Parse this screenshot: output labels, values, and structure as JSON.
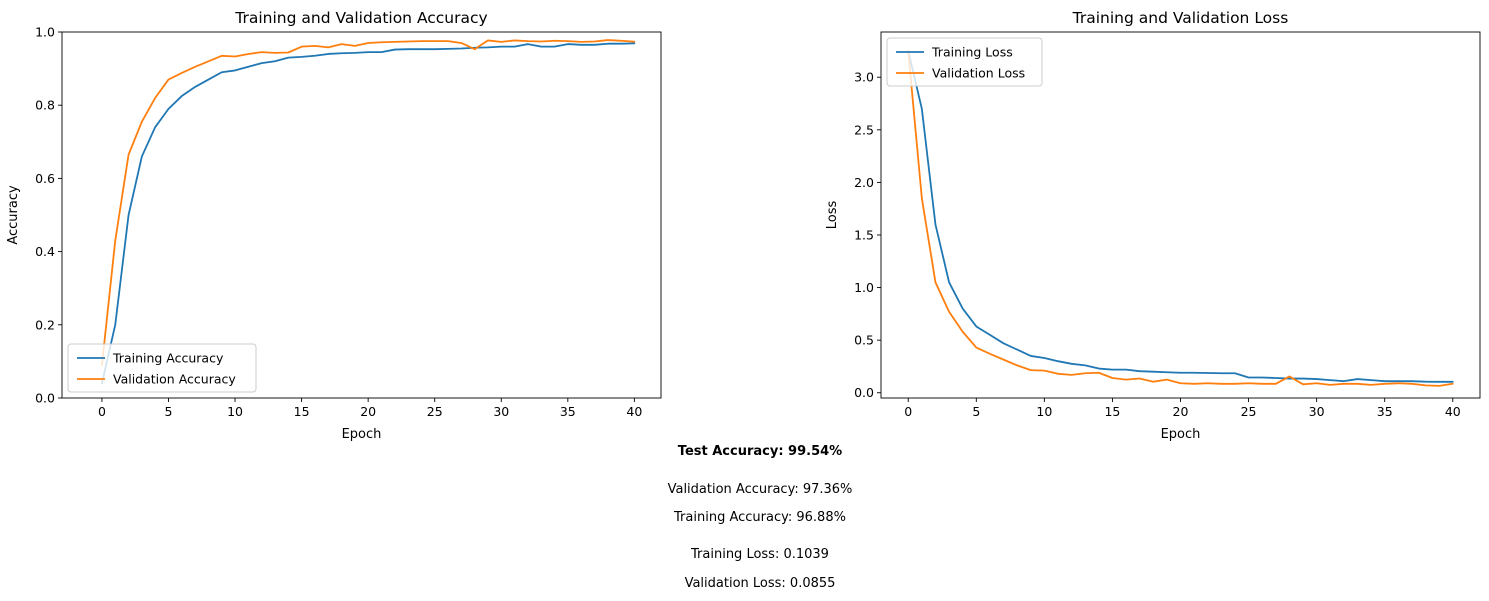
{
  "chart_data": [
    {
      "type": "line",
      "title": "Training and Validation Accuracy",
      "xlabel": "Epoch",
      "ylabel": "Accuracy",
      "xlim": [
        -3,
        42
      ],
      "ylim": [
        0,
        1
      ],
      "xticks": [
        0,
        5,
        10,
        15,
        20,
        25,
        30,
        35,
        40
      ],
      "yticks": [
        0.0,
        0.2,
        0.4,
        0.6,
        0.8,
        1.0
      ],
      "ytick_labels": [
        "0.0",
        "0.2",
        "0.4",
        "0.6",
        "0.8",
        "1.0"
      ],
      "legend_position": "lower-left",
      "grid": false,
      "series": [
        {
          "name": "Training Accuracy",
          "color": "#1f77b4",
          "x": [
            0,
            1,
            2,
            3,
            4,
            5,
            6,
            7,
            8,
            9,
            10,
            11,
            12,
            13,
            14,
            15,
            16,
            17,
            18,
            19,
            20,
            21,
            22,
            23,
            24,
            25,
            26,
            27,
            28,
            29,
            30,
            31,
            32,
            33,
            34,
            35,
            36,
            37,
            38,
            39,
            40
          ],
          "values": [
            0.04,
            0.2,
            0.5,
            0.66,
            0.74,
            0.79,
            0.825,
            0.85,
            0.87,
            0.89,
            0.895,
            0.905,
            0.915,
            0.92,
            0.93,
            0.932,
            0.935,
            0.94,
            0.942,
            0.943,
            0.945,
            0.945,
            0.952,
            0.953,
            0.953,
            0.953,
            0.954,
            0.955,
            0.957,
            0.958,
            0.96,
            0.96,
            0.967,
            0.96,
            0.96,
            0.967,
            0.965,
            0.965,
            0.968,
            0.968,
            0.969
          ]
        },
        {
          "name": "Validation Accuracy",
          "color": "#ff7f0e",
          "x": [
            0,
            1,
            2,
            3,
            4,
            5,
            6,
            7,
            8,
            9,
            10,
            11,
            12,
            13,
            14,
            15,
            16,
            17,
            18,
            19,
            20,
            21,
            22,
            23,
            24,
            25,
            26,
            27,
            28,
            29,
            30,
            31,
            32,
            33,
            34,
            35,
            36,
            37,
            38,
            39,
            40
          ],
          "values": [
            0.09,
            0.43,
            0.665,
            0.755,
            0.82,
            0.87,
            0.888,
            0.905,
            0.92,
            0.935,
            0.933,
            0.94,
            0.945,
            0.943,
            0.944,
            0.96,
            0.962,
            0.958,
            0.967,
            0.962,
            0.97,
            0.972,
            0.973,
            0.974,
            0.975,
            0.975,
            0.975,
            0.97,
            0.953,
            0.977,
            0.973,
            0.977,
            0.975,
            0.974,
            0.976,
            0.975,
            0.973,
            0.974,
            0.978,
            0.976,
            0.9736
          ]
        }
      ]
    },
    {
      "type": "line",
      "title": "Training and Validation Loss",
      "xlabel": "Epoch",
      "ylabel": "Loss",
      "xlim": [
        -2,
        42
      ],
      "ylim": [
        -0.05,
        3.43
      ],
      "xticks": [
        0,
        5,
        10,
        15,
        20,
        25,
        30,
        35,
        40
      ],
      "yticks": [
        0.0,
        0.5,
        1.0,
        1.5,
        2.0,
        2.5,
        3.0
      ],
      "ytick_labels": [
        "0.0",
        "0.5",
        "1.0",
        "1.5",
        "2.0",
        "2.5",
        "3.0"
      ],
      "legend_position": "upper-left",
      "grid": false,
      "series": [
        {
          "name": "Training Loss",
          "color": "#1f77b4",
          "x": [
            0,
            1,
            2,
            3,
            4,
            5,
            6,
            7,
            8,
            9,
            10,
            11,
            12,
            13,
            14,
            15,
            16,
            17,
            18,
            19,
            20,
            21,
            22,
            23,
            24,
            25,
            26,
            27,
            28,
            29,
            30,
            31,
            32,
            33,
            34,
            35,
            36,
            37,
            38,
            39,
            40
          ],
          "values": [
            3.25,
            2.7,
            1.6,
            1.05,
            0.8,
            0.63,
            0.55,
            0.47,
            0.41,
            0.35,
            0.33,
            0.3,
            0.275,
            0.26,
            0.23,
            0.22,
            0.22,
            0.205,
            0.2,
            0.195,
            0.19,
            0.19,
            0.188,
            0.185,
            0.185,
            0.145,
            0.145,
            0.14,
            0.135,
            0.135,
            0.13,
            0.12,
            0.11,
            0.13,
            0.12,
            0.11,
            0.11,
            0.11,
            0.105,
            0.104,
            0.1039
          ]
        },
        {
          "name": "Validation Loss",
          "color": "#ff7f0e",
          "x": [
            0,
            1,
            2,
            3,
            4,
            5,
            6,
            7,
            8,
            9,
            10,
            11,
            12,
            13,
            14,
            15,
            16,
            17,
            18,
            19,
            20,
            21,
            22,
            23,
            24,
            25,
            26,
            27,
            28,
            29,
            30,
            31,
            32,
            33,
            34,
            35,
            36,
            37,
            38,
            39,
            40
          ],
          "values": [
            3.25,
            1.85,
            1.05,
            0.77,
            0.58,
            0.43,
            0.37,
            0.315,
            0.26,
            0.215,
            0.21,
            0.18,
            0.17,
            0.185,
            0.19,
            0.14,
            0.125,
            0.135,
            0.105,
            0.125,
            0.09,
            0.085,
            0.09,
            0.085,
            0.085,
            0.09,
            0.085,
            0.085,
            0.155,
            0.08,
            0.09,
            0.075,
            0.085,
            0.085,
            0.075,
            0.085,
            0.09,
            0.085,
            0.07,
            0.065,
            0.0855
          ]
        }
      ]
    }
  ],
  "summary": {
    "test_accuracy": "Test Accuracy: 99.54%",
    "validation_accuracy": "Validation Accuracy: 97.36%",
    "training_accuracy": "Training Accuracy: 96.88%",
    "training_loss": "Training Loss: 0.1039",
    "validation_loss": "Validation Loss: 0.0855"
  }
}
